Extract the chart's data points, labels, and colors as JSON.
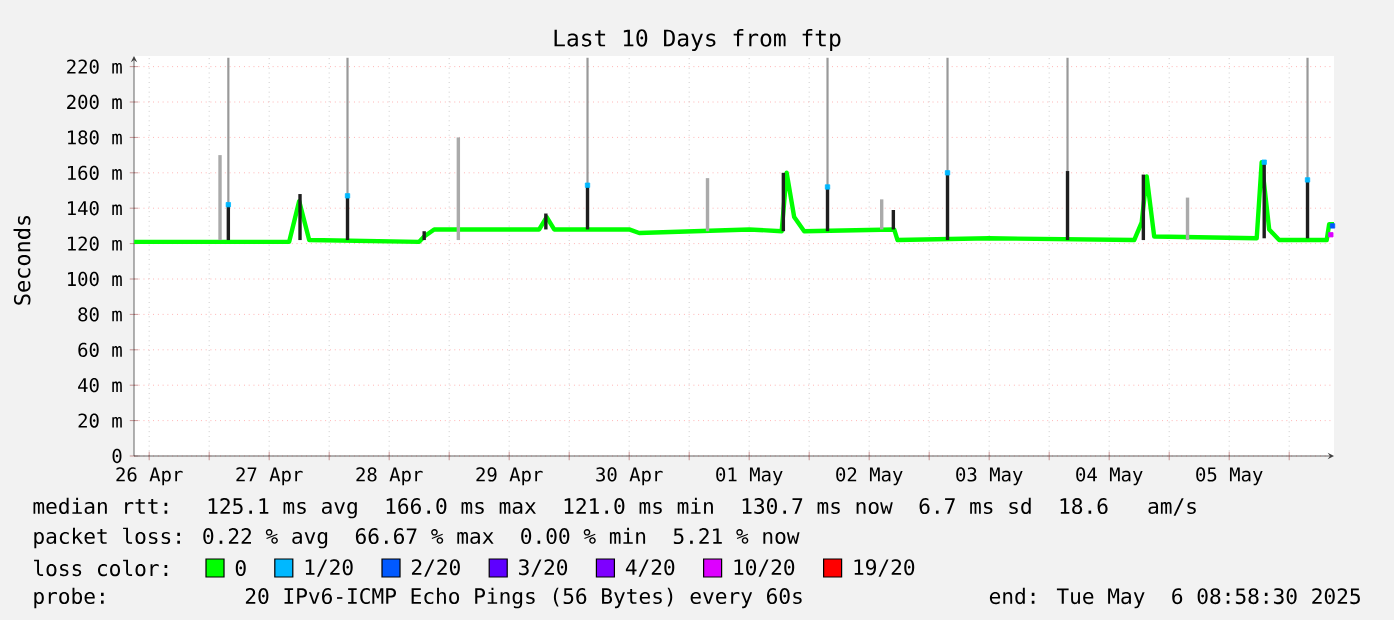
{
  "chart_data": {
    "type": "line",
    "title": "Last 10 Days from ftp",
    "ylabel": "Seconds",
    "legend_title": "loss color:",
    "xlim": [
      "2025-04-26T08:58",
      "2025-05-06T08:58"
    ],
    "ylim": [
      0,
      226
    ],
    "xticks": [
      {
        "value": "2025-04-26T12:00",
        "label": "26 Apr"
      },
      {
        "value": "2025-04-27T12:00",
        "label": "27 Apr"
      },
      {
        "value": "2025-04-28T12:00",
        "label": "28 Apr"
      },
      {
        "value": "2025-04-29T12:00",
        "label": "29 Apr"
      },
      {
        "value": "2025-04-30T12:00",
        "label": "30 Apr"
      },
      {
        "value": "2025-05-01T12:00",
        "label": "01 May"
      },
      {
        "value": "2025-05-02T12:00",
        "label": "02 May"
      },
      {
        "value": "2025-05-03T12:00",
        "label": "03 May"
      },
      {
        "value": "2025-05-04T12:00",
        "label": "04 May"
      },
      {
        "value": "2025-05-05T12:00",
        "label": "05 May"
      },
      {
        "value": "2025-04-27T00:00",
        "label": null
      },
      {
        "value": "2025-04-28T00:00",
        "label": null
      },
      {
        "value": "2025-04-29T00:00",
        "label": null
      },
      {
        "value": "2025-04-30T00:00",
        "label": null
      },
      {
        "value": "2025-05-01T00:00",
        "label": null
      },
      {
        "value": "2025-05-02T00:00",
        "label": null
      },
      {
        "value": "2025-05-03T00:00",
        "label": null
      },
      {
        "value": "2025-05-04T00:00",
        "label": null
      },
      {
        "value": "2025-05-05T00:00",
        "label": null
      },
      {
        "value": "2025-05-06T00:00",
        "label": null
      }
    ],
    "yticks": [
      {
        "value": 0,
        "label": "0"
      },
      {
        "value": 20,
        "label": "20 m"
      },
      {
        "value": 40,
        "label": "40 m"
      },
      {
        "value": 60,
        "label": "60 m"
      },
      {
        "value": 80,
        "label": "80 m"
      },
      {
        "value": 100,
        "label": "100 m"
      },
      {
        "value": 120,
        "label": "120 m"
      },
      {
        "value": 140,
        "label": "140 m"
      },
      {
        "value": 160,
        "label": "160 m"
      },
      {
        "value": 180,
        "label": "180 m"
      },
      {
        "value": 200,
        "label": "200 m"
      },
      {
        "value": 220,
        "label": "220 m"
      }
    ],
    "grid": true,
    "legend": "bottom",
    "series": [
      {
        "type": "bar",
        "x": [
          "2025-04-27T02:10",
          "2025-04-27T03:50",
          "2025-04-27T18:10",
          "2025-04-28T03:40",
          "2025-04-28T19:00",
          "2025-04-29T01:50",
          "2025-04-29T19:20",
          "2025-04-30T03:40",
          "2025-05-01T03:40",
          "2025-05-01T18:50",
          "2025-05-02T03:40",
          "2025-05-02T14:30",
          "2025-05-02T16:50",
          "2025-05-03T03:40",
          "2025-05-04T03:40",
          "2025-05-04T18:50",
          "2025-05-05T03:40",
          "2025-05-05T19:00",
          "2025-05-06T03:40"
        ],
        "colors": [
          "#aaaaaa",
          "#1e1e1e",
          "#1e1e1e",
          "#1e1e1e",
          "#1e1e1e",
          "#aaaaaa",
          "#1e1e1e",
          "#1e1e1e",
          "#aaaaaa",
          "#1e1e1e",
          "#1e1e1e",
          "#aaaaaa",
          "#1e1e1e",
          "#1e1e1e",
          "#1e1e1e",
          "#1e1e1e",
          "#aaaaaa",
          "#1e1e1e",
          "#1e1e1e"
        ],
        "base": [
          122,
          122,
          122,
          122,
          122,
          122,
          128,
          128,
          127,
          127,
          127,
          128,
          128,
          122,
          122,
          122,
          122,
          123,
          123
        ],
        "values": [
          48,
          20,
          26,
          25,
          5,
          58,
          9,
          24,
          30,
          33,
          25,
          17,
          11,
          39,
          39,
          37,
          24,
          43,
          33
        ],
        "errors": [
          null,
          [
            142,
            225
          ],
          null,
          [
            147,
            225
          ],
          null,
          null,
          null,
          [
            152,
            225
          ],
          null,
          null,
          [
            152,
            225
          ],
          null,
          null,
          [
            161,
            225
          ],
          [
            161,
            225
          ],
          null,
          null,
          null,
          [
            156,
            225
          ]
        ]
      },
      {
        "name": "0",
        "color": "#00ff00",
        "x": [
          "2025-04-26T09:00",
          "2025-04-27T16:00",
          "2025-04-27T18:00",
          "2025-04-27T20:00",
          "2025-04-28T18:00",
          "2025-04-28T19:00",
          "2025-04-28T21:00",
          "2025-04-29T18:00",
          "2025-04-29T19:30",
          "2025-04-29T21:00",
          "2025-04-30T12:00",
          "2025-04-30T14:00",
          "2025-05-01T12:00",
          "2025-05-01T18:30",
          "2025-05-01T19:30",
          "2025-05-01T21:00",
          "2025-05-01T23:00",
          "2025-05-02T17:00",
          "2025-05-02T17:40",
          "2025-05-03T12:00",
          "2025-05-04T17:00",
          "2025-05-04T18:30",
          "2025-05-04T19:30",
          "2025-05-04T21:00",
          "2025-05-05T17:30",
          "2025-05-05T18:30",
          "2025-05-05T20:00",
          "2025-05-05T22:00",
          "2025-05-06T07:30",
          "2025-05-06T08:00",
          "2025-05-06T08:58"
        ],
        "values": [
          121,
          121,
          144,
          122,
          121,
          124,
          128,
          128,
          135,
          128,
          128,
          126,
          128,
          127,
          160,
          135,
          127,
          128,
          122,
          123,
          122,
          132,
          158,
          124,
          123,
          166,
          128,
          122,
          122,
          131,
          131
        ]
      },
      {
        "name": "1/20",
        "type": "scatter",
        "color": "#00b8ff",
        "x": [
          "2025-04-27T03:50",
          "2025-04-28T03:40",
          "2025-04-30T03:40",
          "2025-05-02T03:40",
          "2025-05-03T03:40",
          "2025-05-05T19:00",
          "2025-05-06T03:40"
        ],
        "values": [
          142,
          147,
          153,
          152,
          160,
          166,
          156
        ]
      },
      {
        "name": "2/20",
        "type": "scatter",
        "color": "#0059ff",
        "x": [
          "2025-05-06T08:40"
        ],
        "values": [
          130
        ]
      },
      {
        "name": "3/20",
        "type": "scatter",
        "color": "#5e00ff"
      },
      {
        "name": "4/20",
        "type": "scatter",
        "color": "#7e00ff"
      },
      {
        "name": "10/20",
        "type": "scatter",
        "color": "#dd00ff",
        "x": [
          "2025-05-06T08:20"
        ],
        "values": [
          125
        ]
      },
      {
        "name": "19/20",
        "type": "scatter",
        "color": "#ff0000"
      }
    ],
    "annotations": [
      "median rtt:  125.1 ms avg  166.0 ms max  121.0 ms min  130.7 ms now  6.7 ms sd  18.6   am/s",
      "packet loss: 0.22 % avg  66.67 % max  0.00 % min  5.21 % now",
      "probe:        20 IPv6-ICMP Echo Pings (56 Bytes) every 60s",
      "end: Tue May  6 08:58:30 2025"
    ]
  }
}
